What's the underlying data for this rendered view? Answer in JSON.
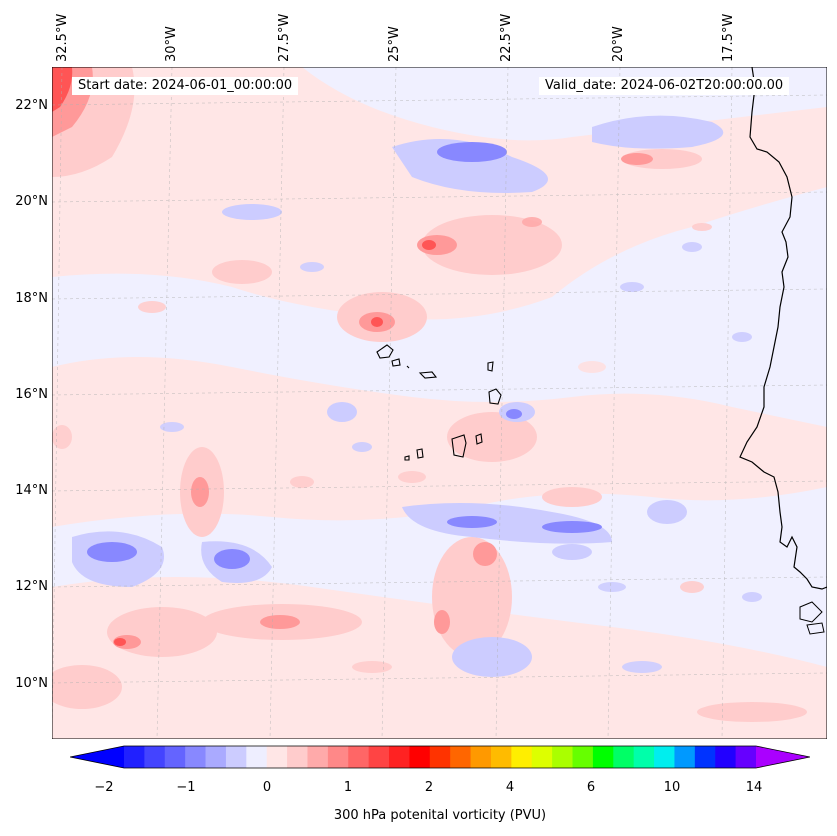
{
  "header": {
    "start_date": "Start date: 2024-06-01_00:00:00",
    "valid_date": "Valid_date: 2024-06-02T20:00:00.00"
  },
  "axes": {
    "longitude_labels": [
      "32.5°W",
      "30°W",
      "27.5°W",
      "25°W",
      "22.5°W",
      "20°W",
      "17.5°W"
    ],
    "latitude_labels": [
      "22°N",
      "20°N",
      "18°N",
      "16°N",
      "14°N",
      "12°N",
      "10°N"
    ],
    "grid": true
  },
  "colorbar": {
    "label": "300 hPa potenital vorticity (PVU)",
    "ticks": [
      "−2",
      "−1",
      "0",
      "1",
      "2",
      "4",
      "6",
      "10",
      "14"
    ],
    "extend": "both",
    "colors": [
      "#0000ff",
      "#2020ff",
      "#4444ff",
      "#6464ff",
      "#8888ff",
      "#aaaaff",
      "#ccccff",
      "#eeeeff",
      "#ffe6e6",
      "#ffcccc",
      "#ffaaaa",
      "#ff8888",
      "#ff6666",
      "#ff4444",
      "#ff2222",
      "#ff0000",
      "#ff3300",
      "#ff6600",
      "#ff9900",
      "#ffbb00",
      "#ffee00",
      "#ddff00",
      "#aaff00",
      "#66ff00",
      "#00ff00",
      "#00ff66",
      "#00ffaa",
      "#00eeee",
      "#0099ff",
      "#0033ff",
      "#2200ff",
      "#6600ff",
      "#aa00ff"
    ]
  }
}
